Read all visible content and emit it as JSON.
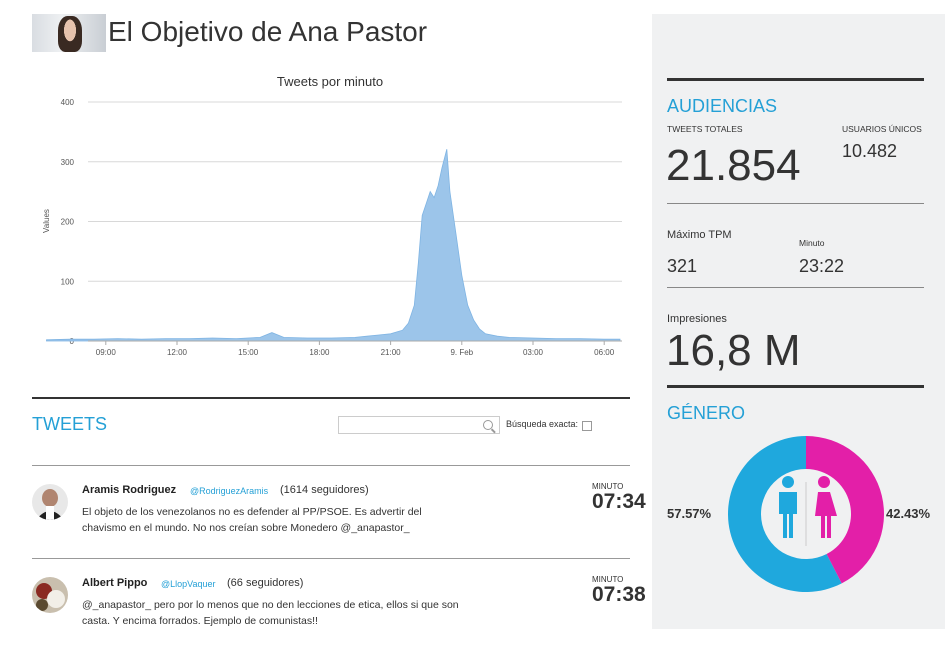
{
  "page": {
    "title": "El Objetivo de Ana Pastor"
  },
  "chart_data": {
    "type": "area",
    "title": "Tweets por minuto",
    "ylabel": "Values",
    "xlabel": "",
    "ylim": [
      0,
      400
    ],
    "yticks": [
      "0",
      "100",
      "200",
      "300",
      "400"
    ],
    "xticks": [
      "09:00",
      "12:00",
      "15:00",
      "18:00",
      "21:00",
      "9. Feb",
      "03:00",
      "06:00"
    ],
    "series": [
      {
        "x": [
          "06:30",
          "07:30",
          "08:30",
          "09:30",
          "10:30",
          "11:30",
          "12:30",
          "13:30",
          "14:30",
          "15:30",
          "16:00",
          "16:30",
          "17:30",
          "18:30",
          "19:30",
          "20:00",
          "20:30",
          "21:00",
          "21:30",
          "21:45",
          "22:00",
          "22:10",
          "22:20",
          "22:30",
          "22:40",
          "22:50",
          "23:00",
          "23:10",
          "23:22",
          "23:30",
          "23:45",
          "00:00",
          "00:15",
          "00:30",
          "00:45",
          "01:00",
          "01:30",
          "02:00",
          "03:00",
          "04:00",
          "05:00",
          "06:00",
          "06:40"
        ],
        "values": [
          2,
          3,
          3,
          4,
          3,
          4,
          4,
          5,
          4,
          6,
          14,
          6,
          5,
          5,
          6,
          8,
          10,
          12,
          18,
          30,
          60,
          130,
          210,
          230,
          250,
          240,
          260,
          290,
          321,
          250,
          180,
          110,
          60,
          35,
          20,
          12,
          8,
          6,
          5,
          4,
          4,
          3,
          3
        ]
      }
    ],
    "color": "#9cc5ea",
    "grid": true
  },
  "tweets_section": {
    "title": "TWEETS",
    "search_placeholder": "",
    "exact_label": "Búsqueda exacta:"
  },
  "tweets": [
    {
      "name": "Aramis Rodriguez",
      "handle": "@RodriguezAramis",
      "followers": "(1614 seguidores)",
      "text": "El objeto de los venezolanos no es defender al PP/PSOE. Es advertir del chavismo en el mundo. No nos creían sobre Monedero @_anapastor_",
      "minute_label": "MINUTO",
      "minute": "07:34"
    },
    {
      "name": "Albert Pippo",
      "handle": "@LlopVaquer",
      "followers": "(66 seguidores)",
      "text": "@_anapastor_ pero por lo menos que no den lecciones de etica, ellos si que son casta. Y encima forrados. Ejemplo de comunistas!!",
      "minute_label": "MINUTO",
      "minute": "07:38"
    }
  ],
  "audiencias": {
    "title": "AUDIENCIAS",
    "tweets_totales_label": "TWEETS TOTALES",
    "tweets_totales": "21.854",
    "usuarios_unicos_label": "USUARIOS ÚNICOS",
    "usuarios_unicos": "10.482",
    "max_tpm_label": "Máximo TPM",
    "max_tpm": "321",
    "minuto_label": "Minuto",
    "minuto": "23:22",
    "impresiones_label": "Impresiones",
    "impresiones": "16,8 M"
  },
  "genero": {
    "title": "GÉNERO",
    "male_pct": "57.57%",
    "female_pct": "42.43%",
    "male_fraction": 0.5757,
    "female_fraction": 0.4243,
    "male_color": "#1fa8dd",
    "female_color": "#e31fa8",
    "male_icon": "male-person-icon",
    "female_icon": "female-person-icon"
  }
}
